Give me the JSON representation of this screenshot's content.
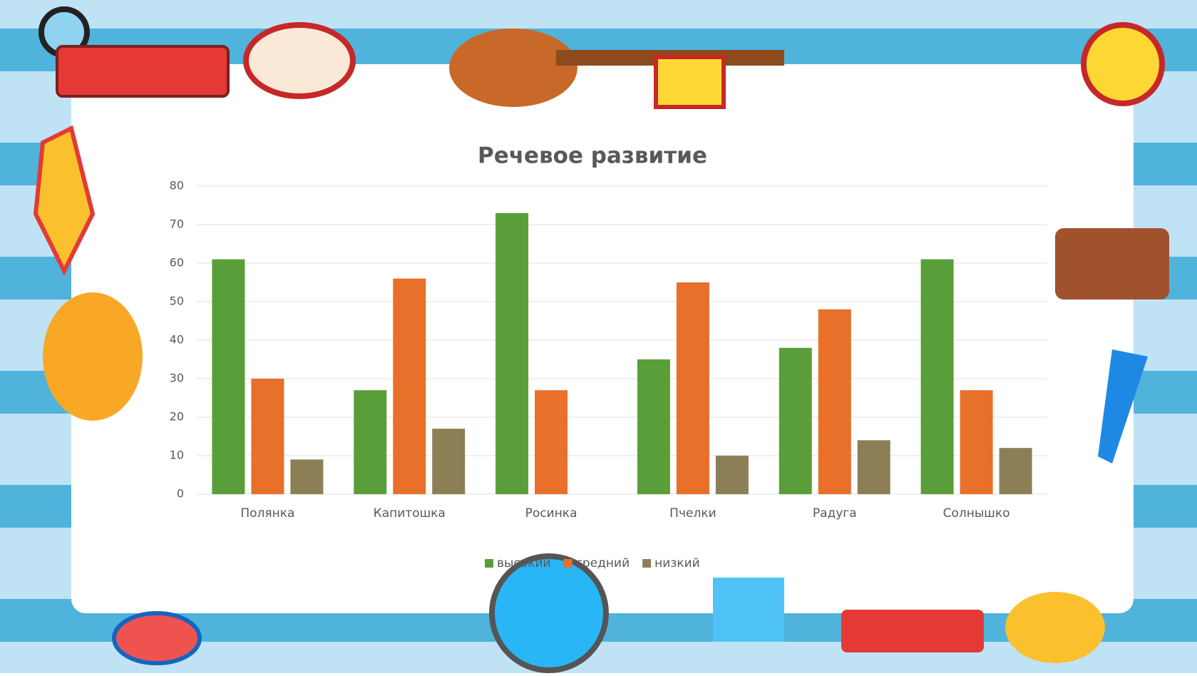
{
  "chart_data": {
    "type": "bar",
    "title": "Речевое развитие",
    "categories": [
      "Полянка",
      "Капитошка",
      "Росинка",
      "Пчелки",
      "Радуга",
      "Солнышко"
    ],
    "series": [
      {
        "name": "высокий",
        "color": "#5a9e3a",
        "values": [
          61,
          27,
          73,
          35,
          38,
          61
        ]
      },
      {
        "name": "средний",
        "color": "#e8702a",
        "values": [
          30,
          56,
          27,
          55,
          48,
          27
        ]
      },
      {
        "name": "низкий",
        "color": "#8c7f55",
        "values": [
          9,
          17,
          0,
          10,
          14,
          12
        ]
      }
    ],
    "ylim": [
      0,
      80
    ],
    "yticks": [
      0,
      10,
      20,
      30,
      40,
      50,
      60,
      70,
      80
    ],
    "grid": true,
    "legend": "bottom"
  }
}
